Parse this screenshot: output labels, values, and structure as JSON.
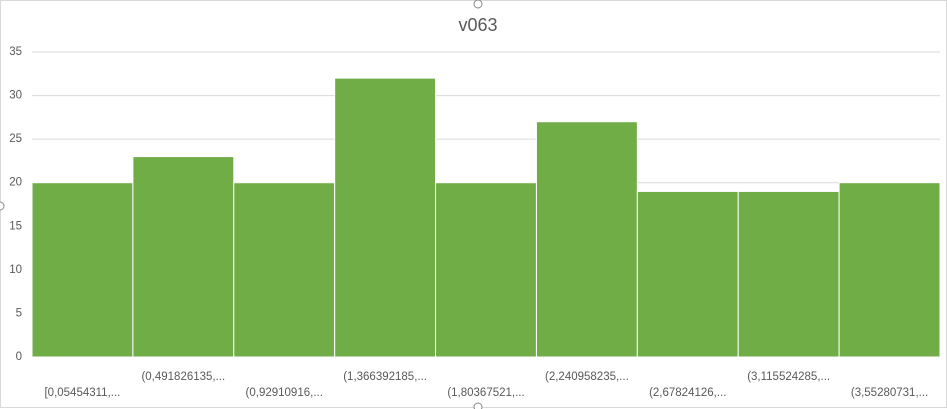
{
  "chart_data": {
    "type": "histogram",
    "title": "v063",
    "categories": [
      "[0,05454311,...",
      "(0,491826135,...",
      "(0,92910916,...",
      "(1,366392185,...",
      "(1,80367521,...",
      "(2,240958235,...",
      "(2,67824126,...",
      "(3,115524285,...",
      "(3,55280731,..."
    ],
    "values": [
      20,
      23,
      20,
      32,
      20,
      27,
      19,
      19,
      20
    ],
    "color": "#70ad47",
    "ylim": [
      0,
      35
    ],
    "yticks": [
      0,
      5,
      10,
      15,
      20,
      25,
      30,
      35
    ],
    "grid": true
  }
}
